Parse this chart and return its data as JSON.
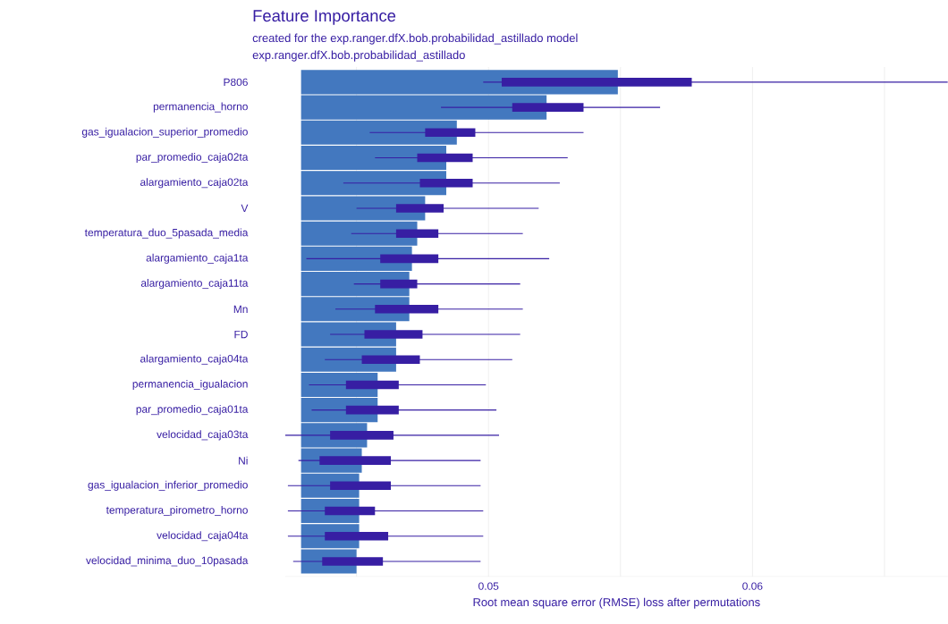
{
  "chart_data": {
    "type": "bar",
    "orientation": "horizontal",
    "title": "Feature Importance",
    "subtitle": "created for the exp.ranger.dfX.bob.probabilidad_astillado model",
    "annotations": [
      "exp.ranger.dfX.bob.probabilidad_astillado"
    ],
    "xlabel": "Root mean square error (RMSE) loss after permutations",
    "categories": [
      "P806",
      "permanencia_horno",
      "gas_igualacion_superior_promedio",
      "par_promedio_caja02ta",
      "alargamiento_caja02ta",
      "V",
      "temperatura_duo_5pasada_media",
      "alargamiento_caja1ta",
      "alargamiento_caja11ta",
      "Mn",
      "FD",
      "alargamiento_caja04ta",
      "permanencia_igualacion",
      "par_promedio_caja01ta",
      "velocidad_caja03ta",
      "Ni",
      "gas_igualacion_inferior_promedio",
      "temperatura_pirometro_horno",
      "velocidad_caja04ta",
      "velocidad_minima_duo_10pasada"
    ],
    "series": [
      {
        "color": "#4378bf",
        "base": [
          0.0429,
          0.0429,
          0.0429,
          0.0429,
          0.0429,
          0.0429,
          0.0429,
          0.0429,
          0.0429,
          0.0429,
          0.0429,
          0.0429,
          0.0429,
          0.0429,
          0.0429,
          0.0429,
          0.0429,
          0.0429,
          0.0429,
          0.0429
        ],
        "values": [
          0.012,
          0.0093,
          0.0059,
          0.0055,
          0.0055,
          0.0047,
          0.0044,
          0.0042,
          0.0041,
          0.0041,
          0.0036,
          0.0036,
          0.0029,
          0.0029,
          0.0025,
          0.0023,
          0.0022,
          0.0022,
          0.0022,
          0.0021
        ]
      },
      {
        "type": "box",
        "color": "#371ea3",
        "boxes": [
          {
            "low": 0.0498,
            "q1": 0.0505,
            "q3": 0.0577,
            "high": 0.0674
          },
          {
            "low": 0.0482,
            "q1": 0.0509,
            "q3": 0.0536,
            "high": 0.0565
          },
          {
            "low": 0.0455,
            "q1": 0.0476,
            "q3": 0.0495,
            "high": 0.0536
          },
          {
            "low": 0.0457,
            "q1": 0.0473,
            "q3": 0.0494,
            "high": 0.053
          },
          {
            "low": 0.0445,
            "q1": 0.0474,
            "q3": 0.0494,
            "high": 0.0527
          },
          {
            "low": 0.045,
            "q1": 0.0465,
            "q3": 0.0483,
            "high": 0.0519
          },
          {
            "low": 0.0448,
            "q1": 0.0465,
            "q3": 0.0481,
            "high": 0.0513
          },
          {
            "low": 0.0431,
            "q1": 0.0459,
            "q3": 0.0481,
            "high": 0.0523
          },
          {
            "low": 0.0449,
            "q1": 0.0459,
            "q3": 0.0473,
            "high": 0.0512
          },
          {
            "low": 0.0442,
            "q1": 0.0457,
            "q3": 0.0481,
            "high": 0.0513
          },
          {
            "low": 0.044,
            "q1": 0.0453,
            "q3": 0.0475,
            "high": 0.0512
          },
          {
            "low": 0.0438,
            "q1": 0.0452,
            "q3": 0.0474,
            "high": 0.0509
          },
          {
            "low": 0.0432,
            "q1": 0.0446,
            "q3": 0.0466,
            "high": 0.0499
          },
          {
            "low": 0.0433,
            "q1": 0.0446,
            "q3": 0.0466,
            "high": 0.0503
          },
          {
            "low": 0.0423,
            "q1": 0.044,
            "q3": 0.0464,
            "high": 0.0504
          },
          {
            "low": 0.0428,
            "q1": 0.0436,
            "q3": 0.0463,
            "high": 0.0497
          },
          {
            "low": 0.0424,
            "q1": 0.044,
            "q3": 0.0463,
            "high": 0.0497
          },
          {
            "low": 0.0424,
            "q1": 0.0438,
            "q3": 0.0457,
            "high": 0.0498
          },
          {
            "low": 0.0424,
            "q1": 0.0438,
            "q3": 0.0462,
            "high": 0.0498
          },
          {
            "low": 0.0426,
            "q1": 0.0437,
            "q3": 0.046,
            "high": 0.0497
          }
        ]
      }
    ],
    "xlim": [
      0.0423,
      0.0674
    ],
    "xticks": [
      {
        "value": 0.045,
        "label": null
      },
      0.05,
      {
        "value": 0.055,
        "label": null
      },
      0.06,
      {
        "value": 0.065,
        "label": null
      }
    ],
    "grid": "x"
  }
}
